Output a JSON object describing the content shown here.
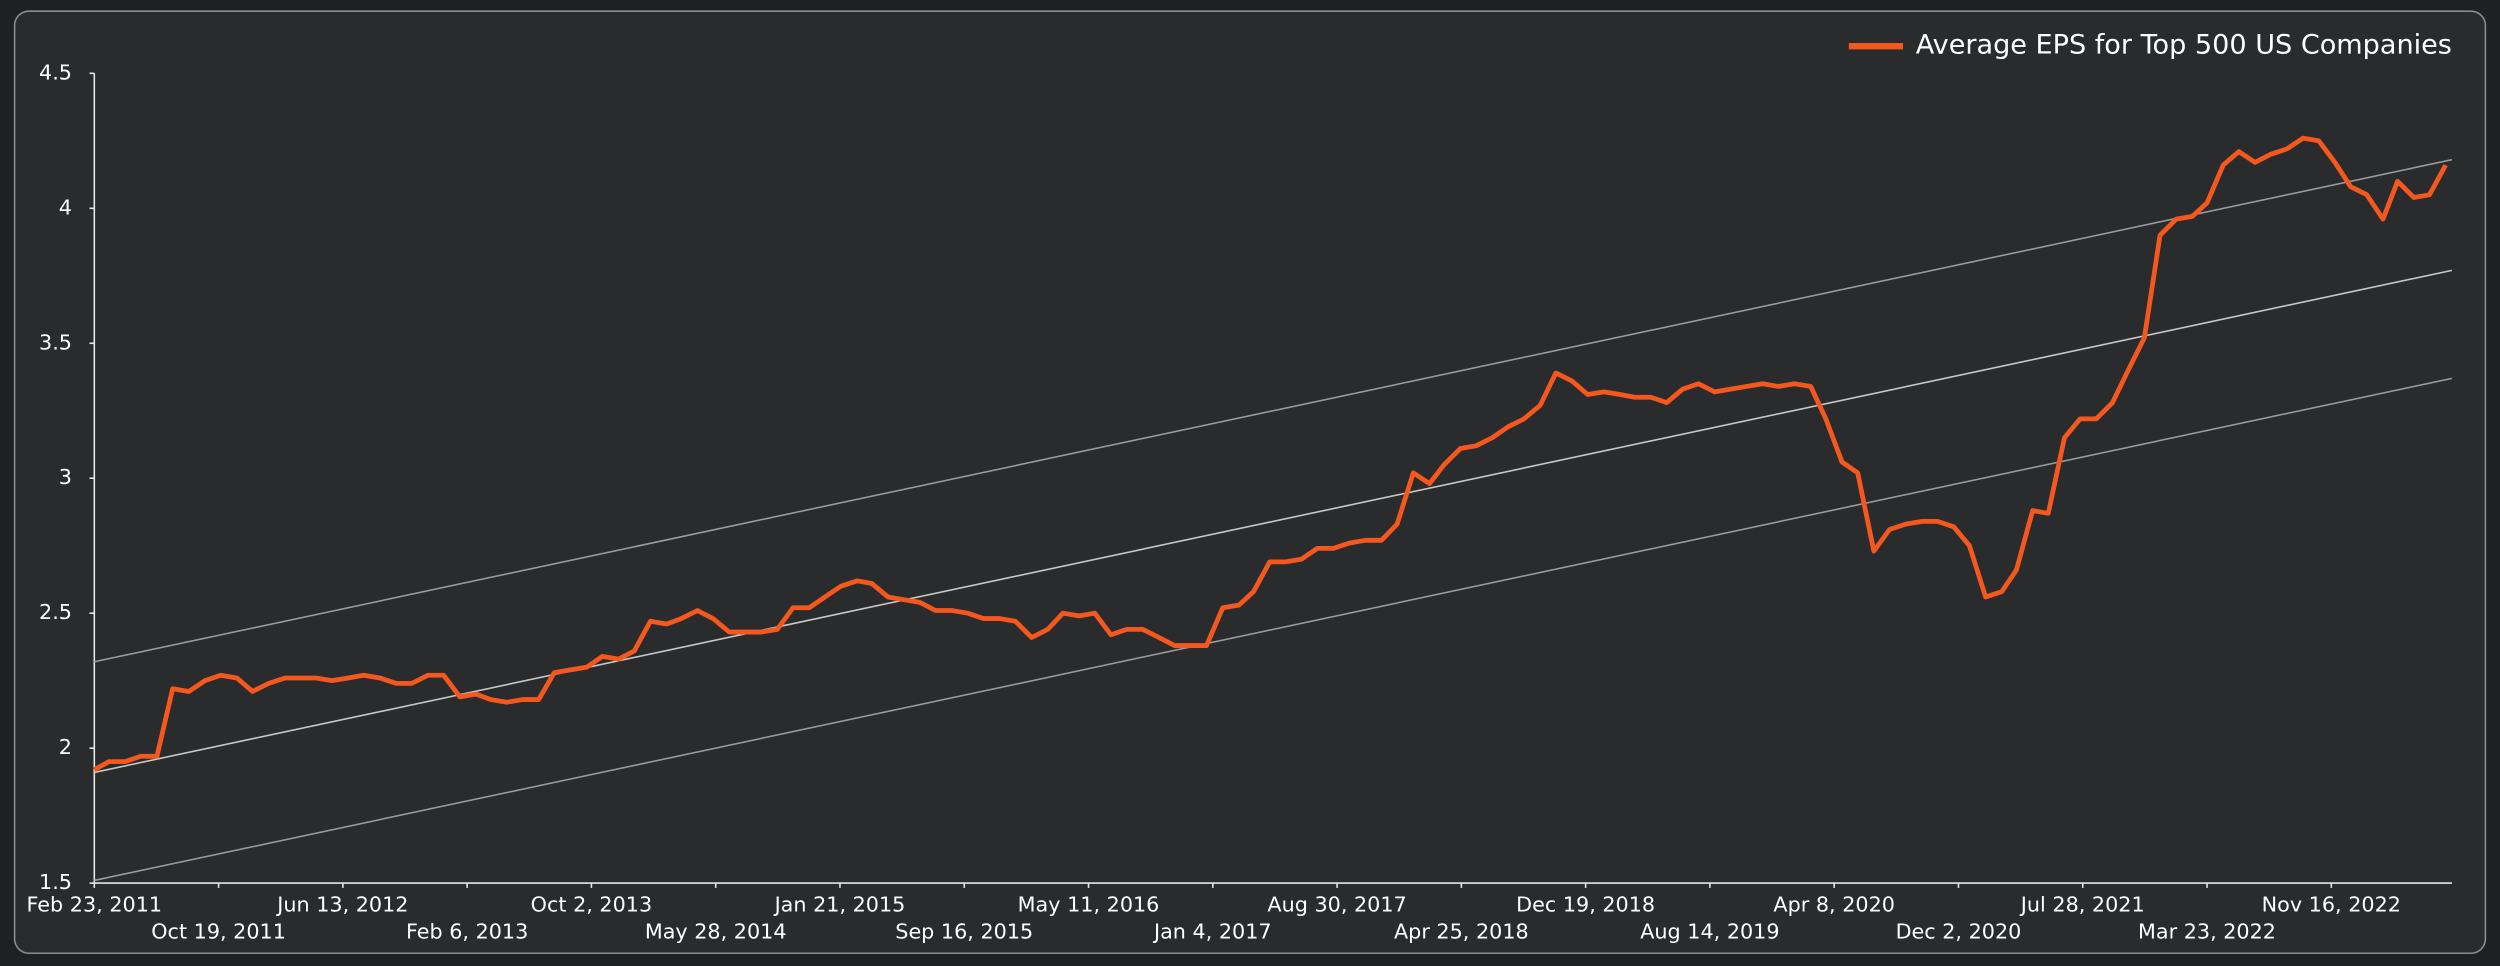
{
  "chart_data": {
    "type": "line",
    "series": [
      {
        "name": "Average EPS for Top 500 US Companies",
        "color": "#f4581f",
        "x": [
          "2011-02-23",
          "2011-03-23",
          "2011-04-23",
          "2011-05-23",
          "2011-06-23",
          "2011-07-23",
          "2011-08-23",
          "2011-09-23",
          "2011-10-23",
          "2011-11-23",
          "2011-12-23",
          "2012-01-23",
          "2012-02-23",
          "2012-03-23",
          "2012-04-23",
          "2012-05-23",
          "2012-06-23",
          "2012-07-23",
          "2012-08-23",
          "2012-09-23",
          "2012-10-23",
          "2012-11-23",
          "2012-12-23",
          "2013-01-23",
          "2013-02-23",
          "2013-03-23",
          "2013-04-23",
          "2013-05-23",
          "2013-06-23",
          "2013-07-23",
          "2013-08-23",
          "2013-09-23",
          "2013-10-23",
          "2013-11-23",
          "2013-12-23",
          "2014-01-23",
          "2014-02-23",
          "2014-03-23",
          "2014-04-23",
          "2014-05-23",
          "2014-06-23",
          "2014-07-23",
          "2014-08-23",
          "2014-09-23",
          "2014-10-23",
          "2014-11-23",
          "2014-12-23",
          "2015-01-23",
          "2015-02-23",
          "2015-03-23",
          "2015-04-23",
          "2015-05-23",
          "2015-06-23",
          "2015-07-23",
          "2015-08-23",
          "2015-09-23",
          "2015-10-23",
          "2015-11-23",
          "2015-12-23",
          "2016-01-23",
          "2016-02-23",
          "2016-03-23",
          "2016-04-23",
          "2016-05-23",
          "2016-06-23",
          "2016-07-23",
          "2016-08-23",
          "2016-09-23",
          "2016-10-23",
          "2016-11-23",
          "2016-12-23",
          "2017-01-23",
          "2017-02-23",
          "2017-03-23",
          "2017-04-23",
          "2017-05-23",
          "2017-06-23",
          "2017-07-23",
          "2017-08-23",
          "2017-09-23",
          "2017-10-23",
          "2017-11-23",
          "2017-12-23",
          "2018-01-23",
          "2018-02-23",
          "2018-03-23",
          "2018-04-23",
          "2018-05-23",
          "2018-06-23",
          "2018-07-23",
          "2018-08-23",
          "2018-09-23",
          "2018-10-23",
          "2018-11-23",
          "2018-12-23",
          "2019-01-23",
          "2019-02-23",
          "2019-03-23",
          "2019-04-23",
          "2019-05-23",
          "2019-06-23",
          "2019-07-23",
          "2019-08-23",
          "2019-09-23",
          "2019-10-23",
          "2019-11-23",
          "2019-12-23",
          "2020-01-23",
          "2020-02-23",
          "2020-03-23",
          "2020-04-23",
          "2020-05-23",
          "2020-06-23",
          "2020-07-23",
          "2020-08-23",
          "2020-09-23",
          "2020-10-23",
          "2020-11-23",
          "2020-12-23",
          "2021-01-23",
          "2021-02-23",
          "2021-03-23",
          "2021-04-23",
          "2021-05-23",
          "2021-06-23",
          "2021-07-23",
          "2021-08-23",
          "2021-09-23",
          "2021-10-23",
          "2021-11-23",
          "2021-12-23",
          "2022-01-23",
          "2022-02-23",
          "2022-03-23",
          "2022-04-23",
          "2022-05-23",
          "2022-06-23",
          "2022-07-23",
          "2022-08-23",
          "2022-09-23",
          "2022-10-23",
          "2022-11-23",
          "2022-12-23",
          "2023-01-23",
          "2023-02-23",
          "2023-03-23",
          "2023-04-23",
          "2023-05-23",
          "2023-06-23"
        ],
        "values": [
          1.92,
          1.95,
          1.95,
          1.97,
          1.97,
          2.22,
          2.21,
          2.25,
          2.27,
          2.26,
          2.21,
          2.24,
          2.26,
          2.26,
          2.26,
          2.25,
          2.26,
          2.27,
          2.26,
          2.24,
          2.24,
          2.27,
          2.27,
          2.19,
          2.2,
          2.18,
          2.17,
          2.18,
          2.18,
          2.28,
          2.29,
          2.3,
          2.34,
          2.33,
          2.36,
          2.47,
          2.46,
          2.48,
          2.51,
          2.48,
          2.43,
          2.43,
          2.43,
          2.44,
          2.52,
          2.52,
          2.56,
          2.6,
          2.62,
          2.61,
          2.56,
          2.55,
          2.54,
          2.51,
          2.51,
          2.5,
          2.48,
          2.48,
          2.47,
          2.41,
          2.44,
          2.5,
          2.49,
          2.5,
          2.42,
          2.44,
          2.44,
          2.41,
          2.38,
          2.38,
          2.38,
          2.52,
          2.53,
          2.58,
          2.69,
          2.69,
          2.7,
          2.74,
          2.74,
          2.76,
          2.77,
          2.77,
          2.83,
          3.02,
          2.98,
          3.05,
          3.11,
          3.12,
          3.15,
          3.19,
          3.22,
          3.27,
          3.39,
          3.36,
          3.31,
          3.32,
          3.31,
          3.3,
          3.3,
          3.28,
          3.33,
          3.35,
          3.32,
          3.33,
          3.34,
          3.35,
          3.34,
          3.35,
          3.34,
          3.22,
          3.06,
          3.02,
          2.73,
          2.81,
          2.83,
          2.84,
          2.84,
          2.82,
          2.75,
          2.56,
          2.58,
          2.66,
          2.88,
          2.87,
          3.15,
          3.22,
          3.22,
          3.28,
          3.4,
          3.52,
          3.9,
          3.96,
          3.97,
          4.02,
          4.16,
          4.21,
          4.17,
          4.2,
          4.22,
          4.26,
          4.25,
          4.17,
          4.08,
          4.05,
          3.96,
          4.1,
          4.04,
          4.05,
          4.16
        ]
      }
    ],
    "trend_lines": [
      {
        "values": [
          1.91,
          3.77
        ]
      },
      {
        "values": [
          2.32,
          4.18
        ]
      },
      {
        "values": [
          1.51,
          3.37
        ]
      }
    ],
    "xlim": [
      "2011-02-23",
      "2023-07-05"
    ],
    "xticks": [
      {
        "value": "2011-02-23",
        "label": "Feb 23, 2011"
      },
      {
        "value": "2011-10-19",
        "label": "Oct 19, 2011"
      },
      {
        "value": "2012-06-13",
        "label": "Jun 13, 2012"
      },
      {
        "value": "2013-02-06",
        "label": "Feb 6, 2013"
      },
      {
        "value": "2013-10-02",
        "label": "Oct 2, 2013"
      },
      {
        "value": "2014-05-28",
        "label": "May 28, 2014"
      },
      {
        "value": "2015-01-21",
        "label": "Jan 21, 2015"
      },
      {
        "value": "2015-09-16",
        "label": "Sep 16, 2015"
      },
      {
        "value": "2016-05-11",
        "label": "May 11, 2016"
      },
      {
        "value": "2017-01-04",
        "label": "Jan 4, 2017"
      },
      {
        "value": "2017-08-30",
        "label": "Aug 30, 2017"
      },
      {
        "value": "2018-04-25",
        "label": "Apr 25, 2018"
      },
      {
        "value": "2018-12-19",
        "label": "Dec 19, 2018"
      },
      {
        "value": "2019-08-14",
        "label": "Aug 14, 2019"
      },
      {
        "value": "2020-04-08",
        "label": "Apr 8, 2020"
      },
      {
        "value": "2020-12-02",
        "label": "Dec 2, 2020"
      },
      {
        "value": "2021-07-28",
        "label": "Jul 28, 2021"
      },
      {
        "value": "2022-03-23",
        "label": "Mar 23, 2022"
      },
      {
        "value": "2022-11-16",
        "label": "Nov 16, 2022"
      }
    ],
    "ylim": [
      1.5,
      4.5
    ],
    "yticks": [
      1.5,
      2,
      2.5,
      3,
      3.5,
      4,
      4.5
    ],
    "legend": "top-right"
  }
}
